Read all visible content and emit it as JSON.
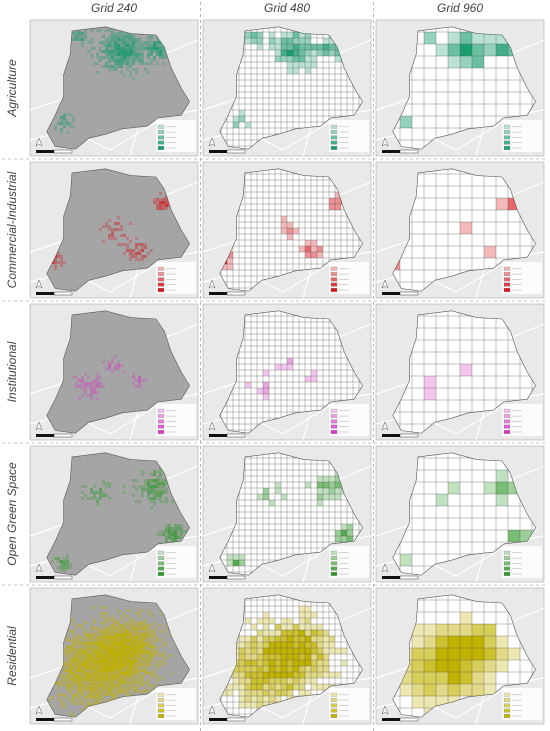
{
  "columns": [
    "Grid 240",
    "Grid 480",
    "Grid 960"
  ],
  "rows": [
    {
      "label": "Agriculture",
      "color": "#1b9e6e"
    },
    {
      "label": "Commercial-Industrial",
      "color": "#d8161c"
    },
    {
      "label": "Institutional",
      "color": "#d63bc4"
    },
    {
      "label": "Open Green Space",
      "color": "#2f9a2a"
    },
    {
      "label": "Residential",
      "color": "#c2b200"
    }
  ]
}
